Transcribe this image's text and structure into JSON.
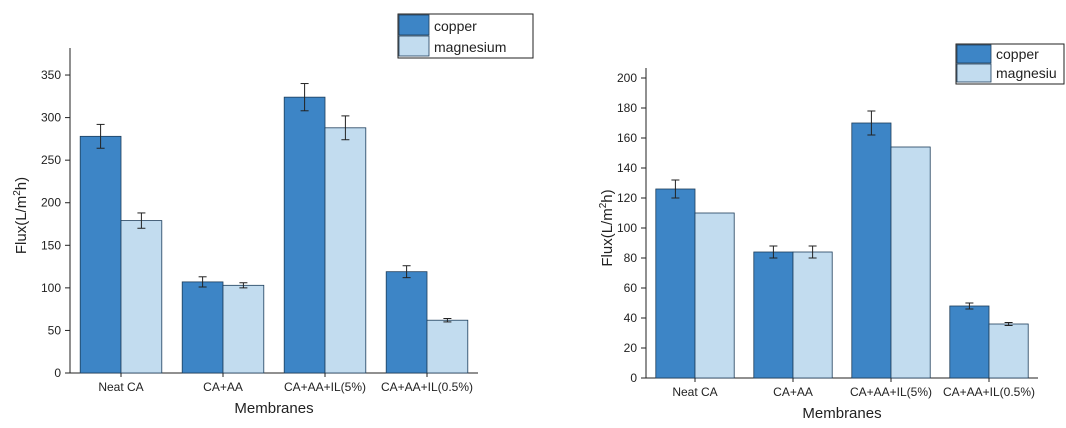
{
  "chart_data": [
    {
      "type": "bar",
      "title": "",
      "xlabel": "Membranes",
      "ylabel": "Flux(L/m²h)",
      "ylabel_main": "Flux(L/m",
      "ylabel_sup": "2",
      "ylabel_tail": "h)",
      "ylim": [
        0,
        370
      ],
      "yticks": [
        0,
        50,
        100,
        150,
        200,
        250,
        300,
        350
      ],
      "categories": [
        "Neat CA",
        "CA+AA",
        "CA+AA+IL(5%)",
        "CA+AA+IL(0.5%)"
      ],
      "series": [
        {
          "name": "copper",
          "color": "#3d85c6",
          "values": [
            278,
            107,
            324,
            119
          ],
          "errors": [
            14,
            6,
            16,
            7
          ]
        },
        {
          "name": "magnesium",
          "color": "#c2dcef",
          "values": [
            179,
            103,
            288,
            62
          ],
          "errors": [
            9,
            3,
            14,
            2
          ]
        }
      ],
      "legend": "top-right",
      "grid": false
    },
    {
      "type": "bar",
      "title": "",
      "xlabel": "Membranes",
      "ylabel": "Flux(L/m²h)",
      "ylabel_main": "Flux(L/m",
      "ylabel_sup": "2",
      "ylabel_tail": "h)",
      "ylim": [
        0,
        200
      ],
      "yticks": [
        0,
        20,
        40,
        60,
        80,
        100,
        120,
        140,
        160,
        180,
        200
      ],
      "categories": [
        "Neat CA",
        "CA+AA",
        "CA+AA+IL(5%)",
        "CA+AA+IL(0.5%)"
      ],
      "series": [
        {
          "name": "copper",
          "color": "#3d85c6",
          "values": [
            126,
            84,
            170,
            48
          ],
          "errors": [
            6,
            4,
            8,
            2
          ]
        },
        {
          "name": "magnesiu",
          "color": "#c2dcef",
          "values": [
            110,
            84,
            154,
            36
          ],
          "errors": [
            0,
            4,
            0,
            1
          ]
        }
      ],
      "legend": "top-right",
      "grid": false
    }
  ]
}
